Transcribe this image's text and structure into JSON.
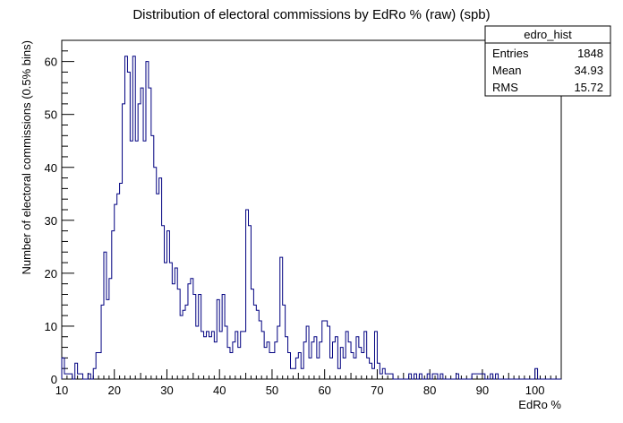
{
  "chart_data": {
    "type": "bar",
    "title": "Distribution of electoral commissions by EdRo % (raw) (spb)",
    "xlabel": "EdRo %",
    "ylabel": "Number of electoral commissions (0.5% bins)",
    "xlim": [
      10,
      105
    ],
    "ylim": [
      0,
      64
    ],
    "bin_width": 0.5,
    "x_ticks": [
      10,
      20,
      30,
      40,
      50,
      60,
      70,
      80,
      90,
      100
    ],
    "y_ticks": [
      0,
      10,
      20,
      30,
      40,
      50,
      60
    ],
    "grid": false,
    "line_color": "#000080",
    "stats_box": {
      "name": "edro_hist",
      "rows": [
        {
          "label": "Entries",
          "value": "1848"
        },
        {
          "label": "Mean",
          "value": "34.93"
        },
        {
          "label": "RMS",
          "value": "15.72"
        }
      ]
    },
    "bins": [
      [
        10.0,
        4
      ],
      [
        10.5,
        1
      ],
      [
        11.0,
        1
      ],
      [
        11.5,
        1
      ],
      [
        12.0,
        0
      ],
      [
        12.5,
        3
      ],
      [
        13.0,
        1
      ],
      [
        13.5,
        1
      ],
      [
        14.0,
        0
      ],
      [
        14.5,
        0
      ],
      [
        15.0,
        1
      ],
      [
        15.5,
        0
      ],
      [
        16.0,
        2
      ],
      [
        16.5,
        5
      ],
      [
        17.0,
        5
      ],
      [
        17.5,
        14
      ],
      [
        18.0,
        24
      ],
      [
        18.5,
        15
      ],
      [
        19.0,
        19
      ],
      [
        19.5,
        28
      ],
      [
        20.0,
        33
      ],
      [
        20.5,
        35
      ],
      [
        21.0,
        37
      ],
      [
        21.5,
        52
      ],
      [
        22.0,
        61
      ],
      [
        22.5,
        58
      ],
      [
        23.0,
        45
      ],
      [
        23.5,
        61
      ],
      [
        24.0,
        45
      ],
      [
        24.5,
        52
      ],
      [
        25.0,
        55
      ],
      [
        25.5,
        45
      ],
      [
        26.0,
        60
      ],
      [
        26.5,
        55
      ],
      [
        27.0,
        46
      ],
      [
        27.5,
        40
      ],
      [
        28.0,
        35
      ],
      [
        28.5,
        38
      ],
      [
        29.0,
        29
      ],
      [
        29.5,
        22
      ],
      [
        30.0,
        28
      ],
      [
        30.5,
        22
      ],
      [
        31.0,
        18
      ],
      [
        31.5,
        21
      ],
      [
        32.0,
        17
      ],
      [
        32.5,
        12
      ],
      [
        33.0,
        13
      ],
      [
        33.5,
        14
      ],
      [
        34.0,
        18
      ],
      [
        34.5,
        19
      ],
      [
        35.0,
        16
      ],
      [
        35.5,
        10
      ],
      [
        36.0,
        16
      ],
      [
        36.5,
        9
      ],
      [
        37.0,
        8
      ],
      [
        37.5,
        9
      ],
      [
        38.0,
        8
      ],
      [
        38.5,
        9
      ],
      [
        39.0,
        7
      ],
      [
        39.5,
        15
      ],
      [
        40.0,
        9
      ],
      [
        40.5,
        16
      ],
      [
        41.0,
        10
      ],
      [
        41.5,
        6
      ],
      [
        42.0,
        5
      ],
      [
        42.5,
        7
      ],
      [
        43.0,
        9
      ],
      [
        43.5,
        6
      ],
      [
        44.0,
        9
      ],
      [
        44.5,
        9
      ],
      [
        45.0,
        32
      ],
      [
        45.5,
        29
      ],
      [
        46.0,
        17
      ],
      [
        46.5,
        14
      ],
      [
        47.0,
        13
      ],
      [
        47.5,
        11
      ],
      [
        48.0,
        9
      ],
      [
        48.5,
        6
      ],
      [
        49.0,
        7
      ],
      [
        49.5,
        5
      ],
      [
        50.0,
        5
      ],
      [
        50.5,
        7
      ],
      [
        51.0,
        10
      ],
      [
        51.5,
        23
      ],
      [
        52.0,
        14
      ],
      [
        52.5,
        8
      ],
      [
        53.0,
        5
      ],
      [
        53.5,
        2
      ],
      [
        54.0,
        2
      ],
      [
        54.5,
        4
      ],
      [
        55.0,
        5
      ],
      [
        55.5,
        2
      ],
      [
        56.0,
        7
      ],
      [
        56.5,
        10
      ],
      [
        57.0,
        4
      ],
      [
        57.5,
        7
      ],
      [
        58.0,
        8
      ],
      [
        58.5,
        4
      ],
      [
        59.0,
        7
      ],
      [
        59.5,
        11
      ],
      [
        60.0,
        11
      ],
      [
        60.5,
        10
      ],
      [
        61.0,
        4
      ],
      [
        61.5,
        7
      ],
      [
        62.0,
        8
      ],
      [
        62.5,
        2
      ],
      [
        63.0,
        6
      ],
      [
        63.5,
        4
      ],
      [
        64.0,
        9
      ],
      [
        64.5,
        7
      ],
      [
        65.0,
        5
      ],
      [
        65.5,
        4
      ],
      [
        66.0,
        8
      ],
      [
        66.5,
        6
      ],
      [
        67.0,
        5
      ],
      [
        67.5,
        9
      ],
      [
        68.0,
        4
      ],
      [
        68.5,
        3
      ],
      [
        69.0,
        2
      ],
      [
        69.5,
        9
      ],
      [
        70.0,
        3
      ],
      [
        70.5,
        1
      ],
      [
        71.0,
        2
      ],
      [
        71.5,
        1
      ],
      [
        72.0,
        1
      ],
      [
        72.5,
        1
      ],
      [
        73.0,
        0
      ],
      [
        73.5,
        0
      ],
      [
        74.0,
        0
      ],
      [
        74.5,
        0
      ],
      [
        75.0,
        0
      ],
      [
        75.5,
        0
      ],
      [
        76.0,
        1
      ],
      [
        76.5,
        0
      ],
      [
        77.0,
        1
      ],
      [
        77.5,
        0
      ],
      [
        78.0,
        1
      ],
      [
        78.5,
        0
      ],
      [
        79.0,
        0
      ],
      [
        79.5,
        1
      ],
      [
        80.0,
        0
      ],
      [
        80.5,
        1
      ],
      [
        81.0,
        1
      ],
      [
        81.5,
        0
      ],
      [
        82.0,
        1
      ],
      [
        82.5,
        0
      ],
      [
        83.0,
        0
      ],
      [
        83.5,
        0
      ],
      [
        84.0,
        0
      ],
      [
        84.5,
        0
      ],
      [
        85.0,
        1
      ],
      [
        85.5,
        0
      ],
      [
        86.0,
        0
      ],
      [
        86.5,
        0
      ],
      [
        87.0,
        0
      ],
      [
        87.5,
        0
      ],
      [
        88.0,
        1
      ],
      [
        88.5,
        1
      ],
      [
        89.0,
        1
      ],
      [
        89.5,
        1
      ],
      [
        90.0,
        1
      ],
      [
        90.5,
        0
      ],
      [
        91.0,
        0
      ],
      [
        91.5,
        1
      ],
      [
        92.0,
        0
      ],
      [
        92.5,
        1
      ],
      [
        93.0,
        0
      ],
      [
        93.5,
        0
      ],
      [
        94.0,
        0
      ],
      [
        94.5,
        0
      ],
      [
        95.0,
        0
      ],
      [
        95.5,
        0
      ],
      [
        96.0,
        0
      ],
      [
        96.5,
        0
      ],
      [
        97.0,
        0
      ],
      [
        97.5,
        0
      ],
      [
        98.0,
        0
      ],
      [
        98.5,
        0
      ],
      [
        99.0,
        0
      ],
      [
        99.5,
        0
      ],
      [
        100.0,
        2
      ],
      [
        100.5,
        0
      ],
      [
        101.0,
        0
      ],
      [
        101.5,
        0
      ],
      [
        102.0,
        0
      ],
      [
        102.5,
        0
      ],
      [
        103.0,
        0
      ],
      [
        103.5,
        0
      ],
      [
        104.0,
        0
      ],
      [
        104.5,
        0
      ]
    ]
  }
}
